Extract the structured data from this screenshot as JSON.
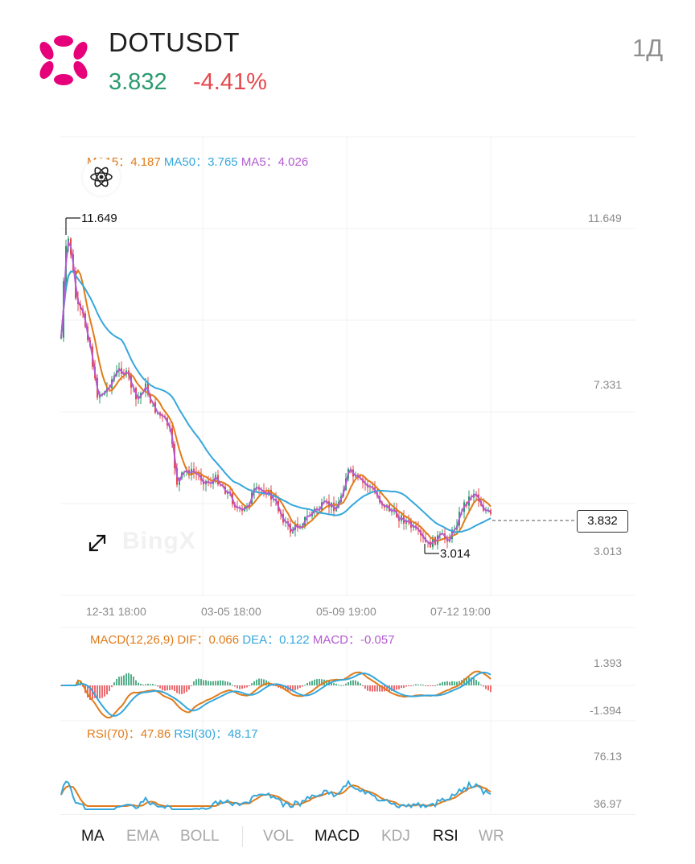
{
  "header": {
    "symbol": "DOTUSDT",
    "price": "3.832",
    "change": "-4.41%",
    "interval": "1Д"
  },
  "colors": {
    "up": "#2a9b6d",
    "down": "#e5484d",
    "logo": "#e6007a",
    "ma15": "#e07b1a",
    "ma50": "#35a7dc",
    "ma5": "#b45bd0"
  },
  "main_legend": {
    "ma15_label": "MA15：",
    "ma15_value": "4.187",
    "ma50_label": "MA50：",
    "ma50_value": "3.765",
    "ma5_label": "MA5：",
    "ma5_value": "4.026"
  },
  "price_axis": [
    "11.649",
    "7.331",
    "3.013"
  ],
  "high_marker": "11.649",
  "low_marker": "3.014",
  "current_price_box": "3.832",
  "time_axis": [
    "12-31 18:00",
    "03-05 18:00",
    "05-09 19:00",
    "07-12 19:00"
  ],
  "watermark": "BingX",
  "macd": {
    "title": "MACD(12,26,9)",
    "dif_label": "DIF：",
    "dif_value": "0.066",
    "dea_label": "DEA：",
    "dea_value": "0.122",
    "macd_label": "MACD：",
    "macd_value": "-0.057",
    "axis": [
      "1.393",
      "-1.394"
    ]
  },
  "rsi": {
    "rsi70_label": "RSI(70)：",
    "rsi70_value": "47.86",
    "rsi30_label": "RSI(30)：",
    "rsi30_value": "48.17",
    "axis": [
      "76.13",
      "36.97"
    ]
  },
  "tabs": [
    {
      "label": "MA",
      "active": true
    },
    {
      "label": "EMA",
      "active": false
    },
    {
      "label": "BOLL",
      "active": false
    },
    {
      "label": "VOL",
      "active": false
    },
    {
      "label": "MACD",
      "active": true
    },
    {
      "label": "KDJ",
      "active": false
    },
    {
      "label": "RSI",
      "active": true
    },
    {
      "label": "WR",
      "active": false
    }
  ],
  "icons": [
    "polkadot-logo-icon",
    "atom-icon",
    "expand-icon"
  ]
}
